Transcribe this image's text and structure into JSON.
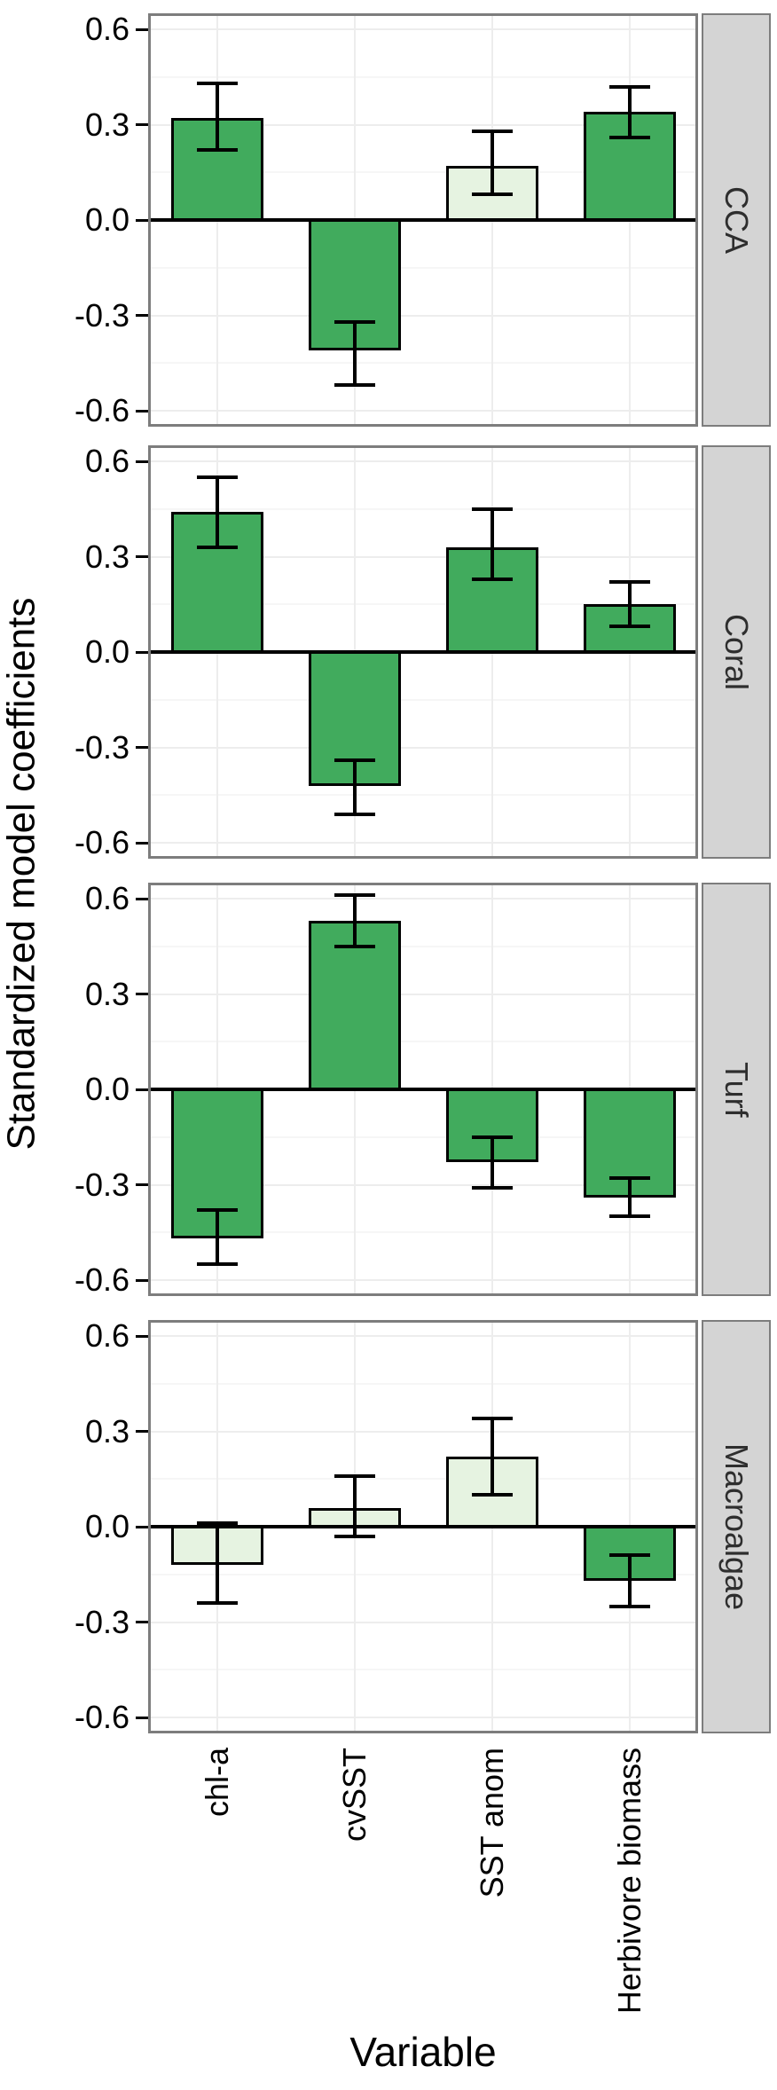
{
  "axes": {
    "y_title": "Standardized model coefficients",
    "x_title": "Variable",
    "y_tick_labels": [
      "0.6",
      "0.3",
      "0.0",
      "-0.3",
      "-0.6"
    ]
  },
  "chart_data": {
    "type": "bar",
    "orientation": "vertical",
    "title": "",
    "xlabel": "Variable",
    "ylabel": "Standardized model coefficients",
    "categories": [
      "chl-a",
      "cvSST",
      "SST anom",
      "Herbivore biomass"
    ],
    "facet_labels": [
      "CCA",
      "Coral",
      "Turf",
      "Macroalgae"
    ],
    "facet_strip_position": "right",
    "ylim": [
      -0.65,
      0.65
    ],
    "y_major_ticks": [
      0.6,
      0.3,
      0.0,
      -0.3,
      -0.6
    ],
    "y_minor_gridlines": [
      0.45,
      0.15,
      -0.15,
      -0.45
    ],
    "grid": true,
    "legend": "none",
    "error_bars": "confidence intervals",
    "colors": {
      "bar_dark": "#41ab5d",
      "bar_light": "#e6f3e1",
      "bar_outline": "#000000",
      "strip_bg": "#d4d4d4",
      "strip_border": "#7d7d7d",
      "panel_border": "#7d7d7d",
      "grid_major": "#ededed",
      "grid_minor": "#f6f6f6",
      "zero_line": "#000000",
      "strip_text": "#2e2e2e",
      "text": "#000000"
    },
    "facets": [
      {
        "label": "CCA",
        "bars": [
          {
            "category": "chl-a",
            "value": 0.32,
            "ci_low": 0.22,
            "ci_high": 0.43,
            "fill": "dark"
          },
          {
            "category": "cvSST",
            "value": -0.41,
            "ci_low": -0.52,
            "ci_high": -0.32,
            "fill": "dark"
          },
          {
            "category": "SST anom",
            "value": 0.17,
            "ci_low": 0.08,
            "ci_high": 0.28,
            "fill": "light"
          },
          {
            "category": "Herbivore biomass",
            "value": 0.34,
            "ci_low": 0.26,
            "ci_high": 0.42,
            "fill": "dark"
          }
        ]
      },
      {
        "label": "Coral",
        "bars": [
          {
            "category": "chl-a",
            "value": 0.44,
            "ci_low": 0.33,
            "ci_high": 0.55,
            "fill": "dark"
          },
          {
            "category": "cvSST",
            "value": -0.42,
            "ci_low": -0.51,
            "ci_high": -0.34,
            "fill": "dark"
          },
          {
            "category": "SST anom",
            "value": 0.33,
            "ci_low": 0.23,
            "ci_high": 0.45,
            "fill": "dark"
          },
          {
            "category": "Herbivore biomass",
            "value": 0.15,
            "ci_low": 0.08,
            "ci_high": 0.22,
            "fill": "dark"
          }
        ]
      },
      {
        "label": "Turf",
        "bars": [
          {
            "category": "chl-a",
            "value": -0.47,
            "ci_low": -0.55,
            "ci_high": -0.38,
            "fill": "dark"
          },
          {
            "category": "cvSST",
            "value": 0.53,
            "ci_low": 0.45,
            "ci_high": 0.61,
            "fill": "dark"
          },
          {
            "category": "SST anom",
            "value": -0.23,
            "ci_low": -0.31,
            "ci_high": -0.15,
            "fill": "dark"
          },
          {
            "category": "Herbivore biomass",
            "value": -0.34,
            "ci_low": -0.4,
            "ci_high": -0.28,
            "fill": "dark"
          }
        ]
      },
      {
        "label": "Macroalgae",
        "bars": [
          {
            "category": "chl-a",
            "value": -0.12,
            "ci_low": -0.24,
            "ci_high": 0.01,
            "fill": "light"
          },
          {
            "category": "cvSST",
            "value": 0.06,
            "ci_low": -0.03,
            "ci_high": 0.16,
            "fill": "light"
          },
          {
            "category": "SST anom",
            "value": 0.22,
            "ci_low": 0.1,
            "ci_high": 0.34,
            "fill": "light"
          },
          {
            "category": "Herbivore biomass",
            "value": -0.17,
            "ci_low": -0.25,
            "ci_high": -0.09,
            "fill": "dark"
          }
        ]
      }
    ]
  }
}
